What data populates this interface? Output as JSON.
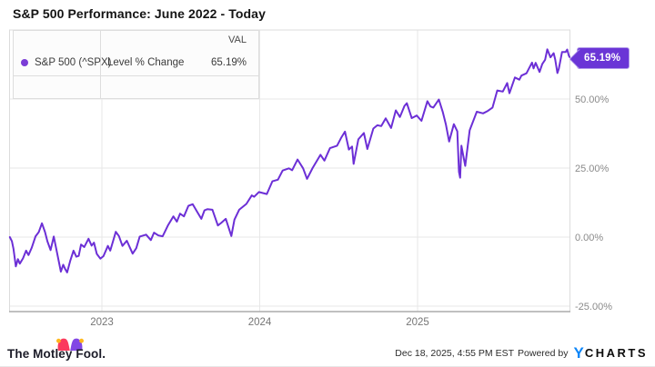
{
  "title": "S&P 500 Performance: June 2022 - Today",
  "legend": {
    "val_header": "VAL",
    "series_name": "S&P 500 (^SPX)",
    "metric": "Level % Change",
    "value": "65.19%",
    "dot_color": "#7b3dd6"
  },
  "badge": {
    "label": "65.19%",
    "bg_color": "#6a35d6",
    "border_color": "#b29bea"
  },
  "footer": {
    "brand": "The Motley Fool.",
    "timestamp": "Dec 18, 2025, 4:55 PM EST",
    "powered_by": "Powered by",
    "ycharts_y": "Y",
    "ycharts_rest": "CHARTS",
    "ycharts_blue": "#0d86f8",
    "hat_left_color": "#fb3a5d",
    "hat_right_color": "#8247e5",
    "hat_ball_color": "#ffb71b"
  },
  "chart_data": {
    "type": "line",
    "title": "S&P 500 Performance: June 2022 - Today",
    "xlabel": "",
    "ylabel": "Level % Change",
    "xlim": [
      2022.417,
      2025.965
    ],
    "ylim": [
      -27,
      75
    ],
    "grid": true,
    "legend_position": "top-left",
    "line_color": "#6c2fd6",
    "grid_color": "#e7e7e7",
    "border_color": "#dcdcdc",
    "axis_color": "#ababab",
    "tick_label_color": "#8a8a8a",
    "x_ticks": [
      {
        "t": 2023,
        "label": "2023"
      },
      {
        "t": 2024,
        "label": "2024"
      },
      {
        "t": 2025,
        "label": "2025"
      }
    ],
    "y_ticks": [
      {
        "v": 50,
        "label": "50.00%"
      },
      {
        "v": 25,
        "label": "25.00%"
      },
      {
        "v": 0,
        "label": "0.00%"
      },
      {
        "v": -25,
        "label": "-25.00%"
      }
    ],
    "series": [
      {
        "name": "S&P 500 (^SPX) Level % Change",
        "final_value": 65.19,
        "points": [
          [
            2022.417,
            0
          ],
          [
            2022.43,
            -1.5
          ],
          [
            2022.44,
            -4.2
          ],
          [
            2022.455,
            -10.6
          ],
          [
            2022.468,
            -8.0
          ],
          [
            2022.48,
            -9.6
          ],
          [
            2022.5,
            -7.7
          ],
          [
            2022.52,
            -4.9
          ],
          [
            2022.535,
            -6.5
          ],
          [
            2022.555,
            -3.9
          ],
          [
            2022.58,
            0.3
          ],
          [
            2022.6,
            1.8
          ],
          [
            2022.62,
            5.0
          ],
          [
            2022.64,
            1.8
          ],
          [
            2022.655,
            -1.5
          ],
          [
            2022.675,
            -4.7
          ],
          [
            2022.695,
            0.2
          ],
          [
            2022.715,
            -5.5
          ],
          [
            2022.74,
            -12.5
          ],
          [
            2022.755,
            -10.0
          ],
          [
            2022.768,
            -11.6
          ],
          [
            2022.78,
            -12.8
          ],
          [
            2022.8,
            -8.5
          ],
          [
            2022.82,
            -4.9
          ],
          [
            2022.838,
            -7.1
          ],
          [
            2022.853,
            -6.8
          ],
          [
            2022.868,
            -2.7
          ],
          [
            2022.888,
            -3.6
          ],
          [
            2022.915,
            -0.6
          ],
          [
            2022.935,
            -3.1
          ],
          [
            2022.95,
            -2.0
          ],
          [
            2022.968,
            -6.1
          ],
          [
            2022.99,
            -7.8
          ],
          [
            2023.01,
            -6.9
          ],
          [
            2023.038,
            -3.2
          ],
          [
            2023.053,
            -4.9
          ],
          [
            2023.088,
            1.9
          ],
          [
            2023.108,
            0.4
          ],
          [
            2023.13,
            -3.2
          ],
          [
            2023.158,
            -1.3
          ],
          [
            2023.195,
            -6.0
          ],
          [
            2023.218,
            -4.0
          ],
          [
            2023.24,
            0.2
          ],
          [
            2023.28,
            0.9
          ],
          [
            2023.31,
            -1.1
          ],
          [
            2023.33,
            1.6
          ],
          [
            2023.358,
            0.6
          ],
          [
            2023.385,
            0.3
          ],
          [
            2023.42,
            4.4
          ],
          [
            2023.453,
            7.5
          ],
          [
            2023.475,
            5.6
          ],
          [
            2023.495,
            8.5
          ],
          [
            2023.52,
            7.5
          ],
          [
            2023.548,
            11.3
          ],
          [
            2023.575,
            11.9
          ],
          [
            2023.605,
            9.0
          ],
          [
            2023.63,
            6.6
          ],
          [
            2023.65,
            9.7
          ],
          [
            2023.668,
            10.1
          ],
          [
            2023.7,
            9.9
          ],
          [
            2023.735,
            4.2
          ],
          [
            2023.755,
            5.1
          ],
          [
            2023.785,
            6.6
          ],
          [
            2023.82,
            0.4
          ],
          [
            2023.84,
            6.3
          ],
          [
            2023.87,
            9.9
          ],
          [
            2023.915,
            12.0
          ],
          [
            2023.95,
            15.1
          ],
          [
            2023.965,
            14.6
          ],
          [
            2023.995,
            16.3
          ],
          [
            2024.045,
            15.6
          ],
          [
            2024.08,
            20.2
          ],
          [
            2024.115,
            20.8
          ],
          [
            2024.145,
            24.1
          ],
          [
            2024.185,
            24.9
          ],
          [
            2024.205,
            24.2
          ],
          [
            2024.24,
            28.1
          ],
          [
            2024.275,
            24.9
          ],
          [
            2024.3,
            21.1
          ],
          [
            2024.335,
            25.0
          ],
          [
            2024.385,
            29.8
          ],
          [
            2024.41,
            27.7
          ],
          [
            2024.445,
            32.2
          ],
          [
            2024.49,
            33.1
          ],
          [
            2024.515,
            35.9
          ],
          [
            2024.54,
            38.2
          ],
          [
            2024.565,
            31.7
          ],
          [
            2024.585,
            32.8
          ],
          [
            2024.595,
            26.5
          ],
          [
            2024.625,
            35.4
          ],
          [
            2024.66,
            37.7
          ],
          [
            2024.682,
            31.9
          ],
          [
            2024.72,
            39.3
          ],
          [
            2024.745,
            40.5
          ],
          [
            2024.77,
            40.2
          ],
          [
            2024.798,
            43.0
          ],
          [
            2024.832,
            39.5
          ],
          [
            2024.862,
            45.9
          ],
          [
            2024.888,
            43.5
          ],
          [
            2024.917,
            47.5
          ],
          [
            2024.932,
            48.5
          ],
          [
            2024.963,
            43.1
          ],
          [
            2024.995,
            44.0
          ],
          [
            2025.025,
            42.1
          ],
          [
            2025.062,
            49.2
          ],
          [
            2025.082,
            47.3
          ],
          [
            2025.1,
            46.9
          ],
          [
            2025.135,
            49.8
          ],
          [
            2025.16,
            45.2
          ],
          [
            2025.18,
            40.7
          ],
          [
            2025.2,
            34.6
          ],
          [
            2025.23,
            40.9
          ],
          [
            2025.252,
            38.3
          ],
          [
            2025.262,
            23.7
          ],
          [
            2025.27,
            21.5
          ],
          [
            2025.278,
            33.1
          ],
          [
            2025.292,
            28.7
          ],
          [
            2025.302,
            25.8
          ],
          [
            2025.33,
            38.7
          ],
          [
            2025.375,
            45.4
          ],
          [
            2025.415,
            44.8
          ],
          [
            2025.445,
            45.7
          ],
          [
            2025.475,
            46.9
          ],
          [
            2025.505,
            53.1
          ],
          [
            2025.54,
            52.7
          ],
          [
            2025.568,
            55.8
          ],
          [
            2025.582,
            52.1
          ],
          [
            2025.617,
            57.8
          ],
          [
            2025.645,
            57.0
          ],
          [
            2025.658,
            58.5
          ],
          [
            2025.69,
            59.3
          ],
          [
            2025.725,
            63.2
          ],
          [
            2025.735,
            61.1
          ],
          [
            2025.748,
            63.1
          ],
          [
            2025.773,
            59.8
          ],
          [
            2025.79,
            62.7
          ],
          [
            2025.808,
            64.2
          ],
          [
            2025.822,
            68.0
          ],
          [
            2025.842,
            65.1
          ],
          [
            2025.862,
            66.6
          ],
          [
            2025.872,
            64.3
          ],
          [
            2025.886,
            59.4
          ],
          [
            2025.895,
            61.0
          ],
          [
            2025.915,
            67.0
          ],
          [
            2025.938,
            67.0
          ],
          [
            2025.948,
            67.9
          ],
          [
            2025.958,
            65.8
          ],
          [
            2025.963,
            65.19
          ]
        ]
      }
    ]
  }
}
